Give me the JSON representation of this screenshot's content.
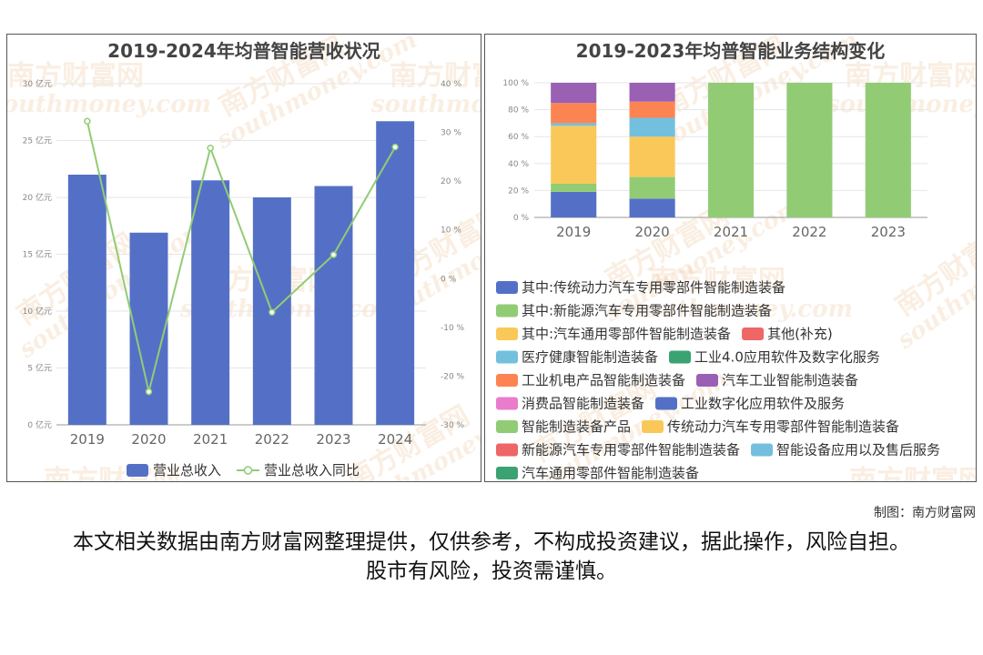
{
  "colors": {
    "revenue_bar": "#5470c6",
    "yoy_line": "#91cc75",
    "stack": [
      "#5470c6",
      "#91cc75",
      "#fac858",
      "#ee6666",
      "#73c0de",
      "#3ba272",
      "#fc8452",
      "#9a60b4",
      "#ea7ccc",
      "#5470c6",
      "#91cc75",
      "#fac858",
      "#ee6666",
      "#73c0de",
      "#3ba272"
    ],
    "watermark": "#e9b37d"
  },
  "watermark": {
    "cn": "南方财富网",
    "en": "southmoney.com"
  },
  "chart_data": [
    {
      "type": "bar+line",
      "title": "2019-2024年均普智能营收状况",
      "categories": [
        "2019",
        "2020",
        "2021",
        "2022",
        "2023",
        "2024"
      ],
      "series": [
        {
          "name": "营业总收入",
          "type": "bar",
          "axis": "left",
          "values": [
            22.0,
            16.9,
            21.5,
            20.0,
            21.0,
            26.7
          ]
        },
        {
          "name": "营业总收入同比",
          "type": "line",
          "axis": "right",
          "values": [
            32.3,
            -23.2,
            26.8,
            -6.9,
            4.9,
            27.0
          ]
        }
      ],
      "y_left": {
        "ticks": [
          "0 亿元",
          "5 亿元",
          "10 亿元",
          "15 亿元",
          "20 亿元",
          "25 亿元",
          "30 亿元"
        ],
        "range": [
          0,
          30
        ]
      },
      "y_right": {
        "ticks": [
          "-30 %",
          "-20 %",
          "-10 %",
          "0 %",
          "10 %",
          "20 %",
          "30 %",
          "40 %"
        ],
        "range": [
          -30,
          40
        ]
      },
      "legend_position": "bottom"
    },
    {
      "type": "bar",
      "stacked": true,
      "title": "2019-2023年均普智能业务结构变化",
      "categories": [
        "2019",
        "2020",
        "2021",
        "2022",
        "2023"
      ],
      "y_ticks": [
        "0 %",
        "20 %",
        "40 %",
        "60 %",
        "80 %",
        "100 %"
      ],
      "y_range": [
        0,
        100
      ],
      "legend_position": "bottom",
      "series": [
        {
          "name": "其中:传统动力汽车专用零部件智能制造装备",
          "values": [
            19,
            14,
            0,
            0,
            0
          ]
        },
        {
          "name": "其中:新能源汽车专用零部件智能制造装备",
          "values": [
            6,
            16,
            0,
            0,
            0
          ]
        },
        {
          "name": "其中:汽车通用零部件智能制造装备",
          "values": [
            43,
            30,
            0,
            0,
            0
          ]
        },
        {
          "name": "其他(补充)",
          "values": [
            0,
            0,
            0,
            0,
            0
          ]
        },
        {
          "name": "医疗健康智能制造装备",
          "values": [
            2,
            14,
            0,
            0,
            0
          ]
        },
        {
          "name": "工业4.0应用软件及数字化服务",
          "values": [
            0,
            0,
            0,
            0,
            0
          ]
        },
        {
          "name": "工业机电产品智能制造装备",
          "values": [
            15,
            12,
            0,
            0,
            0
          ]
        },
        {
          "name": "汽车工业智能制造装备",
          "values": [
            15,
            14,
            0,
            0,
            0
          ]
        },
        {
          "name": "消费品智能制造装备",
          "values": [
            0,
            0,
            0,
            0,
            0
          ]
        },
        {
          "name": "工业数字化应用软件及服务",
          "values": [
            0,
            0,
            0,
            0,
            0
          ]
        },
        {
          "name": "智能制造装备产品",
          "values": [
            0,
            0,
            100,
            100,
            100
          ]
        },
        {
          "name": "传统动力汽车专用零部件智能制造装备",
          "values": [
            0,
            0,
            0,
            0,
            0
          ]
        },
        {
          "name": "新能源汽车专用零部件智能制造装备",
          "values": [
            0,
            0,
            0,
            0,
            0
          ]
        },
        {
          "name": "智能设备应用以及售后服务",
          "values": [
            0,
            0,
            0,
            0,
            0
          ]
        },
        {
          "name": "汽车通用零部件智能制造装备",
          "values": [
            0,
            0,
            0,
            0,
            0
          ]
        }
      ]
    }
  ],
  "footer": {
    "credit": "制图：南方财富网",
    "disclaimer": "本文相关数据由南方财富网整理提供，仅供参考，不构成投资建议，据此操作，风险自担。股市有风险，投资需谨慎。"
  }
}
